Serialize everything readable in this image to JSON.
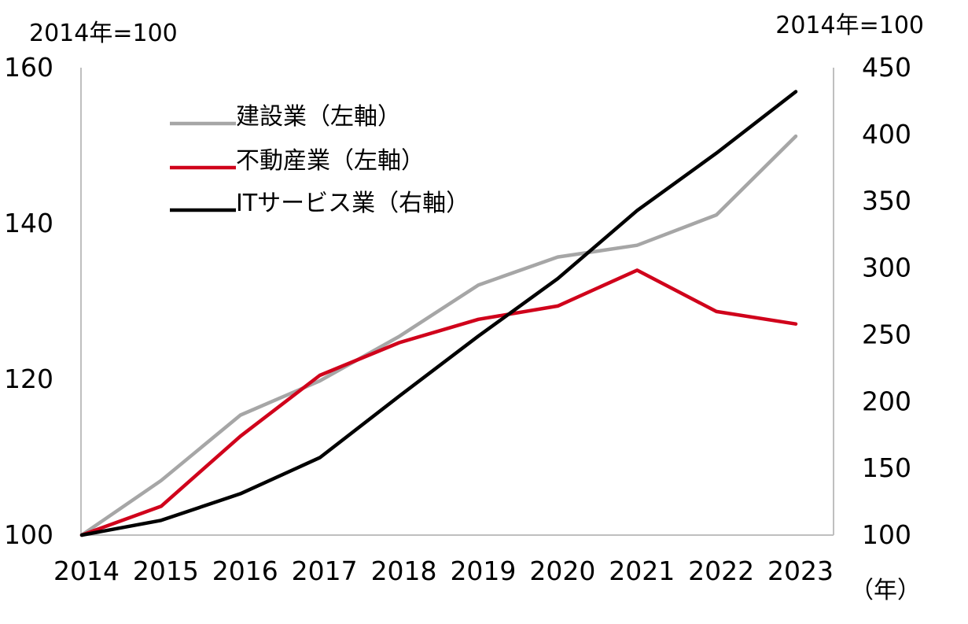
{
  "chart_data": {
    "type": "line",
    "title": "",
    "x": [
      "2014",
      "2015",
      "2016",
      "2017",
      "2018",
      "2019",
      "2020",
      "2021",
      "2022",
      "2023"
    ],
    "xlabel": "（年）",
    "y_left": {
      "unit_label": "2014年=100",
      "ylim": [
        100,
        160
      ],
      "ticks": [
        100,
        120,
        140,
        160
      ]
    },
    "y_right": {
      "unit_label": "2014年=100",
      "ylim": [
        100,
        450
      ],
      "ticks": [
        100,
        150,
        200,
        250,
        300,
        350,
        400,
        450
      ]
    },
    "grid": false,
    "legend_position": "top-left",
    "series": [
      {
        "name": "建設業（左軸）",
        "axis": "left",
        "color": "#a6a6a6",
        "values": [
          100,
          107,
          115.4,
          119.8,
          125.5,
          132.1,
          135.7,
          137.2,
          141.1,
          151.2
        ]
      },
      {
        "name": "不動産業（左軸）",
        "axis": "left",
        "color": "#d0021b",
        "values": [
          100,
          103.7,
          112.7,
          120.5,
          124.7,
          127.7,
          129.4,
          134,
          128.7,
          127.1
        ]
      },
      {
        "name": "ITサービス業（右軸）",
        "axis": "right",
        "color": "#000000",
        "values": [
          100,
          111,
          131,
          158,
          204,
          249,
          292,
          343,
          386,
          432
        ]
      }
    ]
  }
}
